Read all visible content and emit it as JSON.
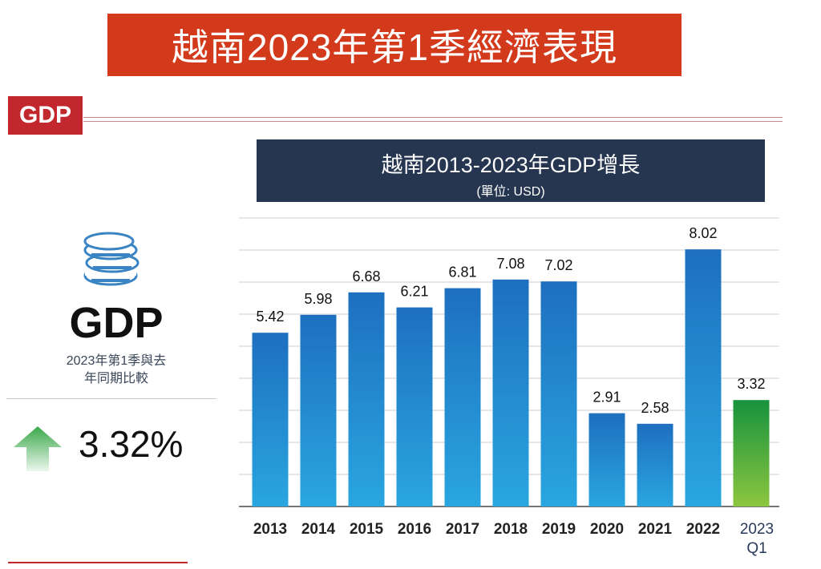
{
  "header": {
    "title": "越南2023年第1季經濟表現"
  },
  "section_tag": "GDP",
  "summary": {
    "icon": "coins-icon",
    "label": "GDP",
    "description_line1": "2023年第1季與去",
    "description_line2": "年同期比較",
    "trend": "up",
    "value": "3.32%"
  },
  "colors": {
    "banner": "#d33a1c",
    "title_bg": "#263650",
    "bar": "#2080cc",
    "highlight_bar": "#3aa84a",
    "tag": "#c1272d"
  },
  "chart_data": {
    "type": "bar",
    "title": "越南2013-2023年GDP增長",
    "subtitle": "(單位: USD)",
    "categories": [
      "2013",
      "2014",
      "2015",
      "2016",
      "2017",
      "2018",
      "2019",
      "2020",
      "2021",
      "2022",
      "2023 Q1"
    ],
    "values": [
      5.42,
      5.98,
      6.68,
      6.21,
      6.81,
      7.08,
      7.02,
      2.91,
      2.58,
      8.02,
      3.32
    ],
    "data_labels": [
      "5.42",
      "5.98",
      "6.68",
      "6.21",
      "6.81",
      "7.08",
      "7.02",
      "2.91",
      "2.58",
      "8.02",
      "3.32"
    ],
    "highlight_category": "2023 Q1",
    "ylim": [
      0,
      9
    ],
    "grid": true,
    "xlabel": "",
    "ylabel": ""
  }
}
